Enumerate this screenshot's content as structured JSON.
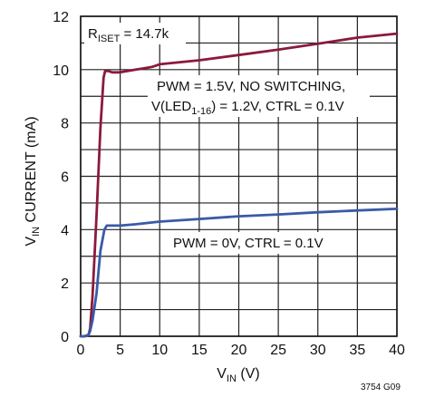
{
  "chart_data": {
    "type": "line",
    "title": "",
    "xlabel": {
      "main": "V",
      "sub": "IN",
      "rest": " (V)"
    },
    "ylabel": {
      "main": "V",
      "sub": "IN",
      "rest": " CURRENT (mA)"
    },
    "xlim": [
      0,
      40
    ],
    "ylim": [
      0,
      12
    ],
    "grid": true,
    "x_ticks": [
      0,
      5,
      10,
      15,
      20,
      25,
      30,
      35,
      40
    ],
    "y_ticks": [
      0,
      2,
      4,
      6,
      8,
      10,
      12
    ],
    "colors": {
      "switching_series": "#8b1a3b",
      "pwm0_series": "#3a5aa8"
    },
    "series": [
      {
        "x": [
          0,
          0.5,
          1.0,
          1.2,
          1.5,
          2.0,
          2.5,
          2.9,
          3.1,
          3.5,
          4.0,
          5.0,
          6.0,
          7.0,
          8.0,
          9.0,
          10.0,
          15.0,
          20.0,
          25.0,
          30.0,
          35.0,
          40.0
        ],
        "values": [
          0,
          0,
          0.05,
          0.3,
          1.5,
          4.5,
          7.8,
          9.7,
          9.95,
          9.95,
          9.9,
          9.9,
          9.95,
          10.0,
          10.05,
          10.1,
          10.2,
          10.35,
          10.55,
          10.75,
          10.97,
          11.2,
          11.35
        ]
      },
      {
        "x": [
          0,
          0.5,
          1.0,
          1.2,
          1.5,
          2.0,
          2.5,
          3.0,
          3.3,
          3.6,
          4.0,
          5.0,
          7.0,
          10.0,
          15.0,
          20.0,
          25.0,
          30.0,
          35.0,
          40.0
        ],
        "values": [
          0,
          0,
          0.05,
          0.2,
          0.6,
          1.6,
          3.2,
          4.0,
          4.15,
          4.15,
          4.15,
          4.15,
          4.2,
          4.3,
          4.4,
          4.5,
          4.57,
          4.65,
          4.72,
          4.78
        ]
      }
    ],
    "annotations": {
      "riset": {
        "main": "R",
        "sub": "ISET",
        "rest": " = 14.7k"
      },
      "pwm_switching_line1": "PWM = 1.5V, NO SWITCHING,",
      "pwm_switching_line2": {
        "pre": "V(LED",
        "sub": "1-16",
        "post": ") = 1.2V, CTRL = 0.1V"
      },
      "pwm0": "PWM = 0V, CTRL = 0.1V",
      "figure_id": "3754 G09"
    }
  }
}
